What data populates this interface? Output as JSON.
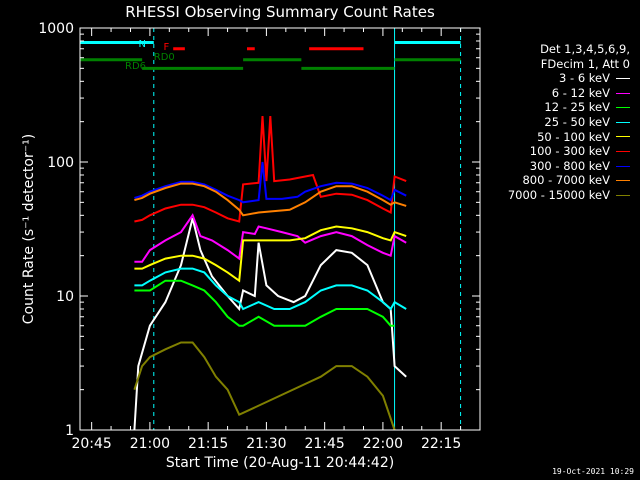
{
  "chart_data": {
    "type": "line",
    "title": "RHESSI Observing Summary Count Rates",
    "xlabel": "Start Time (20-Aug-11 20:44:42)",
    "ylabel": "Count Rate (s⁻¹ detector⁻¹)",
    "xlim": [
      "20:42",
      "22:25"
    ],
    "ylim": [
      1,
      1000
    ],
    "yscale": "log",
    "x_ticks": [
      "20:45",
      "21:00",
      "21:15",
      "21:30",
      "21:45",
      "22:00",
      "22:15"
    ],
    "y_ticks": [
      "1",
      "10",
      "100",
      "1000"
    ],
    "legend_header": [
      "Det 1,3,4,5,6,9,",
      "FDecim 1, Att 0"
    ],
    "legend_position": "right",
    "series": [
      {
        "name": "3 - 6 keV",
        "color": "#ffffff",
        "points": [
          [
            "20:56",
            1
          ],
          [
            "20:57",
            3
          ],
          [
            "21:00",
            6
          ],
          [
            "21:04",
            9
          ],
          [
            "21:08",
            17
          ],
          [
            "21:11",
            38
          ],
          [
            "21:13",
            22
          ],
          [
            "21:16",
            14
          ],
          [
            "21:20",
            10
          ],
          [
            "21:23",
            8
          ],
          [
            "21:24",
            11
          ],
          [
            "21:27",
            10
          ],
          [
            "21:28",
            25
          ],
          [
            "21:30",
            12
          ],
          [
            "21:33",
            10
          ],
          [
            "21:37",
            9
          ],
          [
            "21:40",
            10
          ],
          [
            "21:44",
            17
          ],
          [
            "21:48",
            22
          ],
          [
            "21:52",
            21
          ],
          [
            "21:56",
            17
          ],
          [
            "22:00",
            9
          ],
          [
            "22:02",
            8
          ],
          [
            "22:03",
            3
          ],
          [
            "22:06",
            2.5
          ]
        ]
      },
      {
        "name": "6 - 12 keV",
        "color": "#ff00ff",
        "points": [
          [
            "20:56",
            18
          ],
          [
            "20:58",
            18
          ],
          [
            "21:00",
            22
          ],
          [
            "21:04",
            26
          ],
          [
            "21:08",
            30
          ],
          [
            "21:11",
            40
          ],
          [
            "21:13",
            28
          ],
          [
            "21:16",
            26
          ],
          [
            "21:20",
            22
          ],
          [
            "21:23",
            19
          ],
          [
            "21:24",
            30
          ],
          [
            "21:27",
            29
          ],
          [
            "21:28",
            33
          ],
          [
            "21:30",
            32
          ],
          [
            "21:34",
            30
          ],
          [
            "21:38",
            28
          ],
          [
            "21:40",
            25
          ],
          [
            "21:44",
            28
          ],
          [
            "21:48",
            30
          ],
          [
            "21:52",
            28
          ],
          [
            "21:56",
            24
          ],
          [
            "22:00",
            21
          ],
          [
            "22:02",
            20
          ],
          [
            "22:03",
            28
          ],
          [
            "22:06",
            25
          ]
        ]
      },
      {
        "name": "12 - 25 keV",
        "color": "#00ff00",
        "points": [
          [
            "20:56",
            11
          ],
          [
            "20:58",
            11
          ],
          [
            "21:00",
            11
          ],
          [
            "21:04",
            13
          ],
          [
            "21:08",
            13
          ],
          [
            "21:11",
            12
          ],
          [
            "21:14",
            11
          ],
          [
            "21:17",
            9
          ],
          [
            "21:20",
            7
          ],
          [
            "21:23",
            6
          ],
          [
            "21:24",
            6
          ],
          [
            "21:28",
            7
          ],
          [
            "21:32",
            6
          ],
          [
            "21:36",
            6
          ],
          [
            "21:38",
            6
          ],
          [
            "21:40",
            6
          ],
          [
            "21:44",
            7
          ],
          [
            "21:48",
            8
          ],
          [
            "21:52",
            8
          ],
          [
            "21:56",
            8
          ],
          [
            "22:00",
            7
          ],
          [
            "22:02",
            6
          ],
          [
            "22:03",
            6
          ]
        ]
      },
      {
        "name": "25 - 50 keV",
        "color": "#00ffff",
        "points": [
          [
            "20:56",
            12
          ],
          [
            "20:58",
            12
          ],
          [
            "21:00",
            13
          ],
          [
            "21:04",
            15
          ],
          [
            "21:08",
            16
          ],
          [
            "21:11",
            16
          ],
          [
            "21:14",
            15
          ],
          [
            "21:17",
            12
          ],
          [
            "21:20",
            10
          ],
          [
            "21:23",
            9
          ],
          [
            "21:24",
            8
          ],
          [
            "21:28",
            9
          ],
          [
            "21:32",
            8
          ],
          [
            "21:36",
            8
          ],
          [
            "21:40",
            9
          ],
          [
            "21:44",
            11
          ],
          [
            "21:48",
            12
          ],
          [
            "21:52",
            12
          ],
          [
            "21:56",
            11
          ],
          [
            "22:00",
            9
          ],
          [
            "22:02",
            8
          ],
          [
            "22:03",
            9
          ],
          [
            "22:06",
            8
          ]
        ]
      },
      {
        "name": "50 - 100 keV",
        "color": "#ffff00",
        "points": [
          [
            "20:56",
            16
          ],
          [
            "20:58",
            16
          ],
          [
            "21:00",
            17
          ],
          [
            "21:04",
            19
          ],
          [
            "21:08",
            20
          ],
          [
            "21:11",
            20
          ],
          [
            "21:14",
            19
          ],
          [
            "21:17",
            17
          ],
          [
            "21:20",
            15
          ],
          [
            "21:23",
            13
          ],
          [
            "21:24",
            26
          ],
          [
            "21:28",
            26
          ],
          [
            "21:32",
            26
          ],
          [
            "21:36",
            26
          ],
          [
            "21:40",
            27
          ],
          [
            "21:44",
            31
          ],
          [
            "21:48",
            33
          ],
          [
            "21:52",
            32
          ],
          [
            "21:56",
            30
          ],
          [
            "22:00",
            27
          ],
          [
            "22:02",
            26
          ],
          [
            "22:03",
            30
          ],
          [
            "22:06",
            28
          ]
        ]
      },
      {
        "name": "100 - 300 keV",
        "color": "#ff0000",
        "points": [
          [
            "20:56",
            36
          ],
          [
            "20:58",
            37
          ],
          [
            "21:00",
            40
          ],
          [
            "21:04",
            45
          ],
          [
            "21:08",
            48
          ],
          [
            "21:11",
            48
          ],
          [
            "21:14",
            46
          ],
          [
            "21:17",
            42
          ],
          [
            "21:20",
            38
          ],
          [
            "21:23",
            36
          ],
          [
            "21:24",
            68
          ],
          [
            "21:28",
            70
          ],
          [
            "21:29",
            220
          ],
          [
            "21:30",
            72
          ],
          [
            "21:31",
            220
          ],
          [
            "21:32",
            72
          ],
          [
            "21:36",
            74
          ],
          [
            "21:40",
            78
          ],
          [
            "21:42",
            80
          ],
          [
            "21:44",
            55
          ],
          [
            "21:48",
            58
          ],
          [
            "21:52",
            57
          ],
          [
            "21:56",
            52
          ],
          [
            "22:00",
            45
          ],
          [
            "22:02",
            42
          ],
          [
            "22:03",
            78
          ],
          [
            "22:06",
            72
          ]
        ]
      },
      {
        "name": "300 - 800 keV",
        "color": "#0000ff",
        "points": [
          [
            "20:56",
            54
          ],
          [
            "20:58",
            56
          ],
          [
            "21:00",
            60
          ],
          [
            "21:04",
            66
          ],
          [
            "21:08",
            71
          ],
          [
            "21:11",
            71
          ],
          [
            "21:14",
            68
          ],
          [
            "21:17",
            62
          ],
          [
            "21:20",
            56
          ],
          [
            "21:23",
            52
          ],
          [
            "21:24",
            50
          ],
          [
            "21:28",
            52
          ],
          [
            "21:29",
            100
          ],
          [
            "21:30",
            53
          ],
          [
            "21:34",
            53
          ],
          [
            "21:38",
            55
          ],
          [
            "21:40",
            60
          ],
          [
            "21:44",
            66
          ],
          [
            "21:48",
            70
          ],
          [
            "21:52",
            69
          ],
          [
            "21:56",
            64
          ],
          [
            "22:00",
            56
          ],
          [
            "22:02",
            52
          ],
          [
            "22:03",
            62
          ],
          [
            "22:06",
            56
          ]
        ]
      },
      {
        "name": "800 - 7000 keV",
        "color": "#ff8000",
        "points": [
          [
            "20:56",
            52
          ],
          [
            "20:58",
            54
          ],
          [
            "21:00",
            58
          ],
          [
            "21:04",
            64
          ],
          [
            "21:08",
            69
          ],
          [
            "21:11",
            69
          ],
          [
            "21:14",
            66
          ],
          [
            "21:17",
            60
          ],
          [
            "21:20",
            52
          ],
          [
            "21:23",
            44
          ],
          [
            "21:24",
            40
          ],
          [
            "21:28",
            42
          ],
          [
            "21:32",
            43
          ],
          [
            "21:36",
            44
          ],
          [
            "21:40",
            50
          ],
          [
            "21:44",
            60
          ],
          [
            "21:48",
            66
          ],
          [
            "21:52",
            66
          ],
          [
            "21:56",
            60
          ],
          [
            "22:00",
            52
          ],
          [
            "22:02",
            48
          ],
          [
            "22:03",
            50
          ],
          [
            "22:06",
            47
          ]
        ]
      },
      {
        "name": "7000 - 15000 keV",
        "color": "#808000",
        "points": [
          [
            "20:56",
            2
          ],
          [
            "20:58",
            3
          ],
          [
            "21:00",
            3.5
          ],
          [
            "21:04",
            4
          ],
          [
            "21:08",
            4.5
          ],
          [
            "21:11",
            4.5
          ],
          [
            "21:14",
            3.5
          ],
          [
            "21:17",
            2.5
          ],
          [
            "21:20",
            2
          ],
          [
            "21:23",
            1.3
          ],
          [
            "21:44",
            2.5
          ],
          [
            "21:48",
            3
          ],
          [
            "21:52",
            3
          ],
          [
            "21:56",
            2.5
          ],
          [
            "22:00",
            1.8
          ],
          [
            "22:03",
            1
          ]
        ]
      }
    ],
    "flag_bars": [
      {
        "label": "N",
        "color": "#00ffff",
        "y": 780,
        "segments": [
          [
            "20:42",
            "21:01"
          ],
          [
            "22:03",
            "22:20"
          ]
        ]
      },
      {
        "label": "F",
        "color": "#ff0000",
        "y": 700,
        "segments": [
          [
            "21:06",
            "21:09"
          ],
          [
            "21:25",
            "21:27"
          ],
          [
            "21:41",
            "21:55"
          ]
        ]
      },
      {
        "label": "RD0",
        "color": "#008000",
        "y": 580,
        "segments": [
          [
            "20:42",
            "20:58"
          ],
          [
            "21:24",
            "21:39"
          ],
          [
            "22:03",
            "22:20"
          ]
        ]
      },
      {
        "label": "RD6",
        "color": "#008000",
        "y": 500,
        "segments": [
          [
            "20:58",
            "21:24"
          ],
          [
            "21:39",
            "22:03"
          ]
        ]
      }
    ],
    "vertical_lines": {
      "solid_cyan": [
        "20:42",
        "22:03"
      ],
      "dashed_cyan": [
        "21:01",
        "22:20"
      ]
    },
    "datestamp": "19-Oct-2021 10:29"
  }
}
